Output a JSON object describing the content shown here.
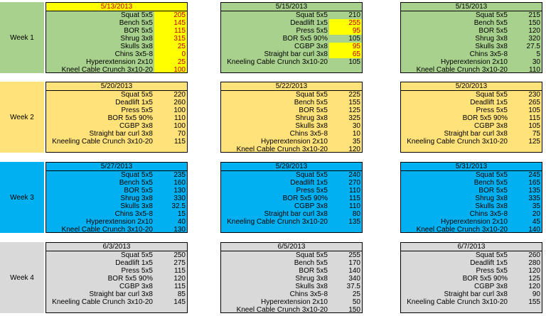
{
  "colors": {
    "week1": "#a9d18e",
    "week2": "#ffe27a",
    "week3": "#00b0f0",
    "week4": "#d9d9d9",
    "highlight": "#ffff00",
    "highlight_text": "#c00000"
  },
  "weeks": [
    {
      "label": "Week 1",
      "color_key": "week1",
      "blocks": [
        {
          "date": "5/13/2013",
          "highlight_date": true,
          "rows": [
            {
              "ex": "Squat 5x5",
              "wt": "205",
              "hl": true
            },
            {
              "ex": "Bench 5x5",
              "wt": "145",
              "hl": true
            },
            {
              "ex": "BOR 5x5",
              "wt": "115",
              "hl": true
            },
            {
              "ex": "Shrug 3x8",
              "wt": "315",
              "hl": true
            },
            {
              "ex": "Skulls 3x8",
              "wt": "25",
              "hl": true
            },
            {
              "ex": "Chins 3x5-8",
              "wt": "0",
              "hl": true
            },
            {
              "ex": "Hyperextension 2x10",
              "wt": "25",
              "hl": true
            },
            {
              "ex": "Kneel Cable Crunch 3x10-20",
              "wt": "100",
              "hl": true
            }
          ]
        },
        {
          "date": "5/15/2013",
          "rows": [
            {
              "ex": "Squat 5x5",
              "wt": "210"
            },
            {
              "ex": "Deadlift 1x5",
              "wt": "255",
              "hl": true
            },
            {
              "ex": "Press 5x5",
              "wt": "95",
              "hl": true
            },
            {
              "ex": "BOR 5x5 90%",
              "wt": "105"
            },
            {
              "ex": "CGBP 3x8",
              "wt": "95",
              "hl": true
            },
            {
              "ex": "Straight bar curl 3x8",
              "wt": "65",
              "hl": true
            },
            {
              "ex": "Kneeling Cable Crunch 3x10-20",
              "wt": "105"
            }
          ]
        },
        {
          "date": "5/15/2013",
          "rows": [
            {
              "ex": "Squat 5x5",
              "wt": "215"
            },
            {
              "ex": "Bench 5x5",
              "wt": "150"
            },
            {
              "ex": "BOR 5x5",
              "wt": "120"
            },
            {
              "ex": "Shrug 3x8",
              "wt": "320"
            },
            {
              "ex": "Skulls 3x8",
              "wt": "27.5"
            },
            {
              "ex": "Chins 3x5-8",
              "wt": "5"
            },
            {
              "ex": "Hyperextension 2x10",
              "wt": "30"
            },
            {
              "ex": "Kneel Cable Crunch 3x10-20",
              "wt": "110"
            }
          ]
        }
      ]
    },
    {
      "label": "Week 2",
      "color_key": "week2",
      "blocks": [
        {
          "date": "5/20/2013",
          "rows": [
            {
              "ex": "Squat 5x5",
              "wt": "220"
            },
            {
              "ex": "Deadlift 1x5",
              "wt": "260"
            },
            {
              "ex": "Press 5x5",
              "wt": "100"
            },
            {
              "ex": "BOR 5x5 90%",
              "wt": "110"
            },
            {
              "ex": "CGBP 3x8",
              "wt": "100"
            },
            {
              "ex": "Straight bar curl 3x8",
              "wt": "70"
            },
            {
              "ex": "Kneeling Cable Crunch 3x10-20",
              "wt": "115"
            }
          ]
        },
        {
          "date": "5/22/2013",
          "rows": [
            {
              "ex": "Squat 5x5",
              "wt": "225"
            },
            {
              "ex": "Bench 5x5",
              "wt": "155"
            },
            {
              "ex": "BOR 5x5",
              "wt": "125"
            },
            {
              "ex": "Shrug 3x8",
              "wt": "325"
            },
            {
              "ex": "Skulls 3x8",
              "wt": "30"
            },
            {
              "ex": "Chins 3x5-8",
              "wt": "10"
            },
            {
              "ex": "Hyperextension 2x10",
              "wt": "35"
            },
            {
              "ex": "Kneel Cable Crunch 3x10-20",
              "wt": "120"
            }
          ]
        },
        {
          "date": "5/20/2013",
          "rows": [
            {
              "ex": "Squat 5x5",
              "wt": "230"
            },
            {
              "ex": "Deadlift 1x5",
              "wt": "265"
            },
            {
              "ex": "Press 5x5",
              "wt": "105"
            },
            {
              "ex": "BOR 5x5 90%",
              "wt": "115"
            },
            {
              "ex": "CGBP 3x8",
              "wt": "105"
            },
            {
              "ex": "Straight bar curl 3x8",
              "wt": "75"
            },
            {
              "ex": "Kneeling Cable Crunch 3x10-20",
              "wt": "125"
            }
          ]
        }
      ]
    },
    {
      "label": "Week 3",
      "color_key": "week3",
      "blocks": [
        {
          "date": "5/27/2013",
          "rows": [
            {
              "ex": "Squat 5x5",
              "wt": "235"
            },
            {
              "ex": "Bench 5x5",
              "wt": "160"
            },
            {
              "ex": "BOR 5x5",
              "wt": "130"
            },
            {
              "ex": "Shrug 3x8",
              "wt": "330"
            },
            {
              "ex": "Skulls 3x8",
              "wt": "32.5"
            },
            {
              "ex": "Chins 3x5-8",
              "wt": "15"
            },
            {
              "ex": "Hyperextension 2x10",
              "wt": "40"
            },
            {
              "ex": "Kneel Cable Crunch 3x10-20",
              "wt": "130"
            }
          ]
        },
        {
          "date": "5/29/2013",
          "rows": [
            {
              "ex": "Squat 5x5",
              "wt": "240"
            },
            {
              "ex": "Deadlift 1x5",
              "wt": "270"
            },
            {
              "ex": "Press 5x5",
              "wt": "110"
            },
            {
              "ex": "BOR 5x5 90%",
              "wt": "115"
            },
            {
              "ex": "CGBP 3x8",
              "wt": "110"
            },
            {
              "ex": "Straight bar curl 3x8",
              "wt": "80"
            },
            {
              "ex": "Kneeling Cable Crunch 3x10-20",
              "wt": "135"
            }
          ]
        },
        {
          "date": "5/31/2013",
          "rows": [
            {
              "ex": "Squat 5x5",
              "wt": "245"
            },
            {
              "ex": "Bench 5x5",
              "wt": "165"
            },
            {
              "ex": "BOR 5x5",
              "wt": "135"
            },
            {
              "ex": "Shrug 3x8",
              "wt": "335"
            },
            {
              "ex": "Skulls 3x8",
              "wt": "35"
            },
            {
              "ex": "Chins 3x5-8",
              "wt": "20"
            },
            {
              "ex": "Hyperextension 2x10",
              "wt": "45"
            },
            {
              "ex": "Kneel Cable Crunch 3x10-20",
              "wt": "140"
            }
          ]
        }
      ]
    },
    {
      "label": "Week 4",
      "color_key": "week4",
      "blocks": [
        {
          "date": "6/3/2013",
          "rows": [
            {
              "ex": "Squat 5x5",
              "wt": "250"
            },
            {
              "ex": "Deadlift 1x5",
              "wt": "275"
            },
            {
              "ex": "Press 5x5",
              "wt": "115"
            },
            {
              "ex": "BOR 5x5 90%",
              "wt": "120"
            },
            {
              "ex": "CGBP 3x8",
              "wt": "115"
            },
            {
              "ex": "Straight bar curl 3x8",
              "wt": "85"
            },
            {
              "ex": "Kneeling Cable Crunch 3x10-20",
              "wt": "145"
            }
          ]
        },
        {
          "date": "6/5/2013",
          "rows": [
            {
              "ex": "Squat 5x5",
              "wt": "255"
            },
            {
              "ex": "Bench 5x5",
              "wt": "170"
            },
            {
              "ex": "BOR 5x5",
              "wt": "140"
            },
            {
              "ex": "Shrug 3x8",
              "wt": "340"
            },
            {
              "ex": "Skulls 3x8",
              "wt": "37.5"
            },
            {
              "ex": "Chins 3x5-8",
              "wt": "25"
            },
            {
              "ex": "Hyperextension 2x10",
              "wt": "50"
            },
            {
              "ex": "Kneel Cable Crunch 3x10-20",
              "wt": "150"
            }
          ]
        },
        {
          "date": "6/7/2013",
          "rows": [
            {
              "ex": "Squat 5x5",
              "wt": "260"
            },
            {
              "ex": "Deadlift 1x5",
              "wt": "280"
            },
            {
              "ex": "Press 5x5",
              "wt": "120"
            },
            {
              "ex": "BOR 5x5 90%",
              "wt": "125"
            },
            {
              "ex": "CGBP 3x8",
              "wt": "120"
            },
            {
              "ex": "Straight bar curl 3x8",
              "wt": "90"
            },
            {
              "ex": "Kneeling Cable Crunch 3x10-20",
              "wt": "155"
            }
          ]
        }
      ]
    }
  ]
}
